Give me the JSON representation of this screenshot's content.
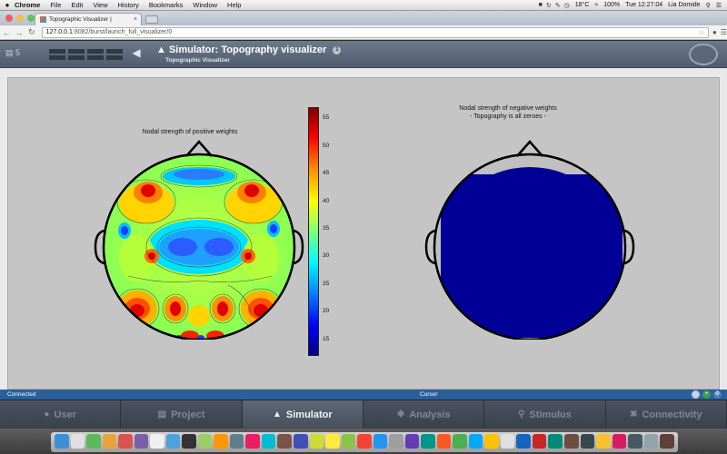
{
  "menubar": {
    "apple": "",
    "items": [
      "Chrome",
      "File",
      "Edit",
      "View",
      "History",
      "Bookmarks",
      "Window",
      "Help"
    ],
    "temperature": "18°C",
    "battery": "100%",
    "clock": "Tue 12:27:04",
    "user": "Lia Domide"
  },
  "browser": {
    "tab_title": "Topographic Visualizer | ",
    "tab_close": "×",
    "url_host": "127.0.0.1",
    "url_path": ":8082/burst/launch_full_visualizer/0"
  },
  "app_header": {
    "project_count": "5",
    "title": "Simulator: Topography visualizer",
    "subtitle": "Topographic Visualizer",
    "help_number": "1"
  },
  "plots": {
    "left_title": "Nodal strength of positive weights",
    "right_title_line1": "Nodal strength of negative weights",
    "right_title_line2": "- Topography is all zeroes -"
  },
  "chart_data": {
    "type": "heatmap",
    "colorbar_ticks": [
      "55",
      "50",
      "45",
      "40",
      "35",
      "30",
      "25",
      "20",
      "15"
    ],
    "colorbar_range": [
      12,
      57
    ],
    "colormap": [
      "#000080",
      "#0000ff",
      "#00a0ff",
      "#00ffff",
      "#7dff7a",
      "#ffff00",
      "#ff9000",
      "#ff0000",
      "#800000"
    ],
    "negative_topography_color": "#000096"
  },
  "statusbar": {
    "connection": "Connected",
    "cursor": "Cursor"
  },
  "bottom_nav": [
    {
      "label": "User",
      "icon": "user-icon"
    },
    {
      "label": "Project",
      "icon": "project-icon"
    },
    {
      "label": "Simulator",
      "icon": "simulator-icon",
      "active": true
    },
    {
      "label": "Analysis",
      "icon": "analysis-icon"
    },
    {
      "label": "Stimulus",
      "icon": "stimulus-icon"
    },
    {
      "label": "Connectivity",
      "icon": "connectivity-icon"
    }
  ]
}
